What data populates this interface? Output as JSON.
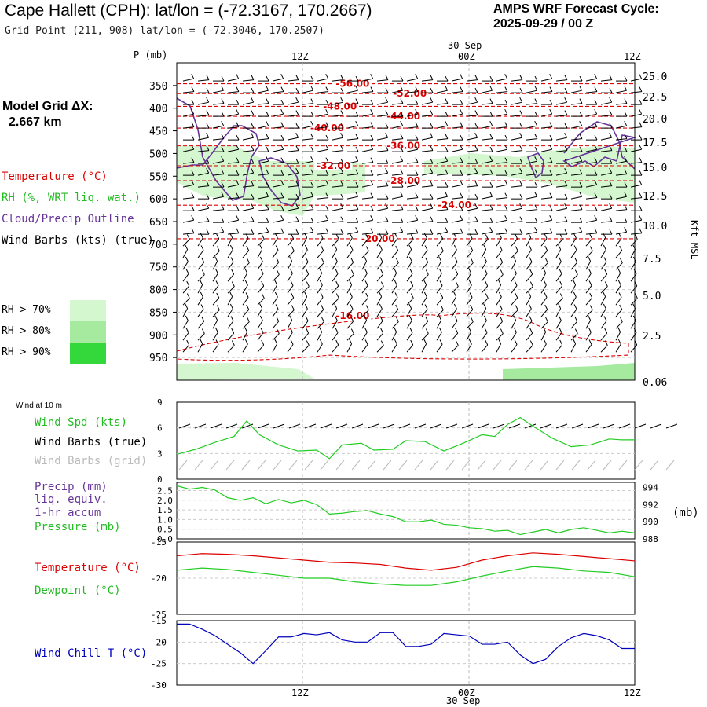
{
  "header": {
    "title": "Cape Hallett (CPH):  lat/lon = (-72.3167, 170.2667)",
    "grid_point": "Grid Point (211, 908) lat/lon = (-72.3046, 170.2507)",
    "cycle_label": "AMPS WRF Forecast Cycle:",
    "cycle_value": "2025-09-29 / 00  Z"
  },
  "model_grid": {
    "label": "Model Grid ΔX:",
    "value": "2.667 km"
  },
  "legend": {
    "temperature": "Temperature (°C)",
    "rh": "RH (%, WRT liq. wat.)",
    "cloud": "Cloud/Precip Outline",
    "wind": "Wind Barbs (kts) (true)",
    "rh_levels": [
      {
        "label": "RH > 70%",
        "color": "#d4f7d0"
      },
      {
        "label": "RH > 80%",
        "color": "#a6eaa0"
      },
      {
        "label": "RH > 90%",
        "color": "#35d83a"
      }
    ]
  },
  "colors": {
    "temperature": "#dd0000",
    "rh_green": "#22cc22",
    "cloud": "#663399",
    "wind_chill": "#0000bb",
    "gray": "#bbbbbb"
  },
  "chart_data": [
    {
      "type": "heatmap",
      "title": "Vertical cross-section",
      "ylabel": "P (mb)",
      "y2label": "Kft MSL",
      "date_label": "30 Sep",
      "x_ticks": [
        "12Z",
        "00Z",
        "12Z"
      ],
      "y_ticks": [
        350,
        400,
        450,
        500,
        550,
        600,
        650,
        700,
        750,
        800,
        850,
        900,
        950
      ],
      "y2_ticks": [
        "25.0",
        "22.5",
        "20.0",
        "17.5",
        "15.0",
        "12.5",
        "10.0",
        "7.5",
        "5.0",
        "2.5",
        "0.06"
      ],
      "ylim": [
        1000,
        300
      ],
      "x_hours": [
        0,
        36
      ],
      "temperature_contours": [
        {
          "label": "-56.00",
          "value": -56,
          "x_hours": 12.5,
          "p": 346
        },
        {
          "label": "-52.00",
          "value": -52,
          "x_hours": 17.0,
          "p": 368
        },
        {
          "label": "-48.00",
          "value": -48,
          "x_hours": 11.5,
          "p": 396
        },
        {
          "label": "-44.00",
          "value": -44,
          "x_hours": 16.5,
          "p": 418
        },
        {
          "label": "-40.00",
          "value": -40,
          "x_hours": 10.5,
          "p": 444
        },
        {
          "label": "-36.00",
          "value": -36,
          "x_hours": 16.5,
          "p": 483
        },
        {
          "label": "-32.00",
          "value": -32,
          "x_hours": 11.0,
          "p": 527
        },
        {
          "label": "-28.00",
          "value": -28,
          "x_hours": 16.5,
          "p": 560
        },
        {
          "label": "-24.00",
          "value": -24,
          "x_hours": 20.5,
          "p": 614
        },
        {
          "label": "-20.00",
          "value": -20,
          "x_hours": 14.5,
          "p": 688
        },
        {
          "label": "-16.00",
          "value": -16,
          "x_hours": 12.5,
          "p": 858
        }
      ]
    },
    {
      "type": "line",
      "title": "Wind at 10 m",
      "labels": {
        "spd": "Wind Spd (kts)",
        "true": "Wind Barbs (true)",
        "grid": "Wind Barbs (grid)"
      },
      "ylim": [
        0,
        9
      ],
      "y_ticks": [
        0,
        3,
        6,
        9
      ],
      "x_hours": [
        0,
        1.5,
        3,
        4.5,
        5.5,
        6.5,
        8,
        9.5,
        11,
        12,
        13,
        14.5,
        15.5,
        17,
        18,
        19.5,
        21,
        22.5,
        24,
        25,
        26,
        27,
        28,
        29.5,
        31,
        32.5,
        34,
        35,
        36
      ],
      "values": [
        2.9,
        3.5,
        4.3,
        5.0,
        6.8,
        5.2,
        4.0,
        3.3,
        3.4,
        2.4,
        4.0,
        4.2,
        3.4,
        3.5,
        4.5,
        4.4,
        3.3,
        4.2,
        5.2,
        5.0,
        6.4,
        7.2,
        6.2,
        4.8,
        3.8,
        4.0,
        4.7,
        4.6,
        4.6
      ]
    },
    {
      "type": "line",
      "labels": {
        "precip": "Precip (mm)",
        "liq": "liq. equiv.",
        "accum": "1-hr accum",
        "pressure": "Pressure (mb)",
        "units": "(mb)"
      },
      "y_ticks_left": [
        "0.0",
        "0.5",
        "1.0",
        "1.5",
        "2.0",
        "2.5"
      ],
      "y_ticks_right": [
        988,
        990,
        992,
        994
      ],
      "ylim": [
        988,
        994.6
      ],
      "x_hours": [
        0,
        1,
        2,
        3,
        4,
        5,
        6,
        7,
        8,
        9,
        10,
        11,
        12,
        13,
        14,
        15,
        16,
        17,
        18,
        19,
        20,
        21,
        22,
        23,
        24,
        25,
        26,
        27,
        28,
        29,
        30,
        31,
        32,
        33,
        34,
        35,
        36
      ],
      "pressure": [
        994.2,
        993.8,
        994.0,
        993.7,
        992.8,
        992.5,
        992.8,
        992.1,
        992.6,
        992.2,
        992.5,
        992.0,
        990.9,
        991.0,
        991.2,
        991.3,
        990.9,
        990.6,
        990.0,
        990.0,
        990.2,
        989.7,
        989.6,
        989.3,
        989.2,
        988.9,
        989.0,
        988.5,
        988.8,
        989.1,
        988.7,
        989.1,
        989.3,
        989.0,
        988.7,
        988.9,
        988.7
      ]
    },
    {
      "type": "line",
      "labels": {
        "temperature": "Temperature (°C)",
        "dewpoint": "Dewpoint (°C)"
      },
      "ylim": [
        -25,
        -15
      ],
      "y_ticks": [
        -15,
        -20,
        -25
      ],
      "x_hours": [
        0,
        2,
        4,
        6,
        8,
        10,
        12,
        14,
        16,
        18,
        20,
        22,
        24,
        26,
        28,
        30,
        32,
        34,
        36
      ],
      "series": [
        {
          "name": "Temperature",
          "values": [
            -16.9,
            -16.6,
            -16.7,
            -16.9,
            -17.2,
            -17.5,
            -17.8,
            -17.9,
            -18.1,
            -18.6,
            -18.9,
            -18.5,
            -17.5,
            -16.9,
            -16.5,
            -16.7,
            -17.0,
            -17.3,
            -17.6
          ]
        },
        {
          "name": "Dewpoint",
          "values": [
            -18.9,
            -18.6,
            -18.8,
            -19.2,
            -19.6,
            -20.0,
            -20.0,
            -20.5,
            -20.8,
            -21.0,
            -21.0,
            -20.5,
            -19.7,
            -19.0,
            -18.4,
            -18.6,
            -19.0,
            -19.2,
            -19.8
          ]
        }
      ]
    },
    {
      "type": "line",
      "labels": {
        "wind_chill": "Wind Chill T (°C)"
      },
      "ylim": [
        -30,
        -15
      ],
      "y_ticks": [
        -15,
        -20,
        -25,
        -30
      ],
      "x_hours": [
        0,
        1,
        2,
        3,
        4,
        5,
        6,
        7,
        8,
        9,
        10,
        11,
        12,
        13,
        14,
        15,
        16,
        17,
        18,
        19,
        20,
        21,
        22,
        23,
        24,
        25,
        26,
        27,
        28,
        29,
        30,
        31,
        32,
        33,
        34,
        35,
        36
      ],
      "values": [
        -15.8,
        -15.8,
        -17.0,
        -18.5,
        -20.5,
        -22.5,
        -25.0,
        -22.0,
        -18.8,
        -18.8,
        -18.0,
        -18.3,
        -17.8,
        -19.5,
        -20.0,
        -20.0,
        -17.8,
        -17.8,
        -21.0,
        -21.0,
        -20.5,
        -18.0,
        -18.3,
        -18.6,
        -20.5,
        -20.5,
        -20.0,
        -23.0,
        -25.0,
        -24.0,
        -21.0,
        -19.0,
        -18.0,
        -18.5,
        -19.5,
        -21.5,
        -21.5
      ]
    }
  ],
  "bottom_axis": {
    "ticks": [
      "12Z",
      "00Z",
      "12Z"
    ],
    "date": "30 Sep"
  }
}
